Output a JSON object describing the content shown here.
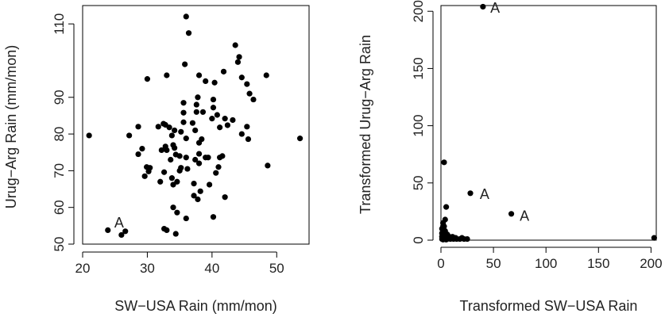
{
  "chart_data": [
    {
      "type": "scatter",
      "title": "",
      "xlabel": "SW−USA Rain (mm/mon)",
      "ylabel": "Urug−Arg Rain (mm/mon)",
      "xlim": [
        20,
        55
      ],
      "ylim": [
        50,
        115
      ],
      "xticks": [
        20,
        30,
        40,
        50
      ],
      "yticks": [
        50,
        60,
        70,
        80,
        90,
        110
      ],
      "grid": false,
      "point_color": "#000000",
      "annotations": [
        {
          "text": "A",
          "x": 24.9,
          "y": 55.8
        }
      ],
      "points": [
        [
          21,
          79.6
        ],
        [
          23.9,
          53.8
        ],
        [
          26,
          52.5
        ],
        [
          26.6,
          53.5
        ],
        [
          27.2,
          79.6
        ],
        [
          28.6,
          82
        ],
        [
          28.6,
          74.5
        ],
        [
          29.2,
          76
        ],
        [
          29.6,
          68.5
        ],
        [
          29.9,
          71
        ],
        [
          30,
          95
        ],
        [
          30.2,
          69.8
        ],
        [
          30.4,
          70.8
        ],
        [
          31.7,
          82
        ],
        [
          32,
          67
        ],
        [
          32.2,
          75.6
        ],
        [
          32.5,
          82.8
        ],
        [
          32.6,
          54.2
        ],
        [
          32.6,
          69.6
        ],
        [
          32.8,
          76.6
        ],
        [
          32.8,
          82.5
        ],
        [
          33,
          53.8
        ],
        [
          33,
          96
        ],
        [
          33,
          75.6
        ],
        [
          33.4,
          81.8
        ],
        [
          33.6,
          73
        ],
        [
          33.8,
          68
        ],
        [
          33.8,
          79.6
        ],
        [
          34,
          60
        ],
        [
          34,
          77
        ],
        [
          34,
          66.2
        ],
        [
          34.2,
          76.2
        ],
        [
          34.2,
          81
        ],
        [
          34.4,
          52.8
        ],
        [
          34.4,
          74.4
        ],
        [
          34.6,
          58.6
        ],
        [
          34.6,
          67
        ],
        [
          35,
          74
        ],
        [
          35,
          70
        ],
        [
          35.2,
          80.6
        ],
        [
          35.2,
          70.8
        ],
        [
          35.6,
          83.2
        ],
        [
          35.6,
          85.8
        ],
        [
          35.6,
          88.5
        ],
        [
          35.8,
          99
        ],
        [
          36,
          112
        ],
        [
          36,
          57
        ],
        [
          36,
          73.6
        ],
        [
          36.2,
          70.5
        ],
        [
          36,
          78.8
        ],
        [
          36.4,
          107.5
        ],
        [
          37,
          83
        ],
        [
          37.2,
          63.2
        ],
        [
          37.2,
          66.5
        ],
        [
          37.4,
          73
        ],
        [
          37.4,
          81
        ],
        [
          37.6,
          86
        ],
        [
          37.6,
          88
        ],
        [
          37.8,
          90
        ],
        [
          37.8,
          62.2
        ],
        [
          38,
          96
        ],
        [
          38,
          74.6
        ],
        [
          38,
          72
        ],
        [
          38,
          77.6
        ],
        [
          38.2,
          64.4
        ],
        [
          38.4,
          78.6
        ],
        [
          38.6,
          86
        ],
        [
          39,
          94.4
        ],
        [
          39,
          73.6
        ],
        [
          39.4,
          73.6
        ],
        [
          39.6,
          66.2
        ],
        [
          40,
          84.2
        ],
        [
          40.2,
          57.4
        ],
        [
          40.2,
          89.4
        ],
        [
          40.2,
          87.2
        ],
        [
          40.4,
          94
        ],
        [
          40.6,
          69.4
        ],
        [
          40.8,
          85.2
        ],
        [
          41,
          71
        ],
        [
          41.2,
          81.8
        ],
        [
          41.2,
          73.6
        ],
        [
          41.6,
          74
        ],
        [
          41.8,
          97
        ],
        [
          42,
          62.8
        ],
        [
          42,
          84.2
        ],
        [
          42.4,
          82.4
        ],
        [
          43.2,
          83.8
        ],
        [
          43.6,
          104.2
        ],
        [
          44,
          99.6
        ],
        [
          44.2,
          101
        ],
        [
          44.6,
          95.4
        ],
        [
          44.6,
          80
        ],
        [
          45.4,
          82
        ],
        [
          45.4,
          93.6
        ],
        [
          45.6,
          78.6
        ],
        [
          45.8,
          91
        ],
        [
          46.4,
          89.4
        ],
        [
          48.4,
          96
        ],
        [
          48.6,
          71.4
        ],
        [
          53.6,
          78.8
        ]
      ]
    },
    {
      "type": "scatter",
      "title": "",
      "xlabel": "Transformed SW−USA Rain",
      "ylabel": "Transformed Urug−Arg Rain",
      "xlim": [
        0,
        205
      ],
      "ylim": [
        0,
        205
      ],
      "xticks": [
        0,
        50,
        100,
        150,
        200
      ],
      "yticks": [
        0,
        50,
        100,
        150,
        200
      ],
      "grid": false,
      "point_color": "#000000",
      "annotations": [
        {
          "text": "A",
          "x": 47,
          "y": 203
        },
        {
          "text": "A",
          "x": 37,
          "y": 40
        },
        {
          "text": "A",
          "x": 75,
          "y": 21
        }
      ],
      "points": [
        [
          40,
          204
        ],
        [
          3,
          68
        ],
        [
          28,
          41
        ],
        [
          67,
          23
        ],
        [
          203,
          2
        ],
        [
          5,
          29
        ],
        [
          2,
          15
        ],
        [
          3,
          12
        ],
        [
          4,
          18
        ],
        [
          2,
          9
        ],
        [
          1,
          6
        ],
        [
          2,
          4
        ],
        [
          3,
          3
        ],
        [
          5,
          2
        ],
        [
          6,
          5
        ],
        [
          8,
          3
        ],
        [
          10,
          2
        ],
        [
          12,
          1
        ],
        [
          15,
          1
        ],
        [
          20,
          2
        ],
        [
          1,
          1
        ],
        [
          2,
          2
        ],
        [
          4,
          1
        ],
        [
          6,
          1
        ],
        [
          7,
          3
        ],
        [
          3,
          7
        ],
        [
          1,
          3
        ],
        [
          2,
          0.5
        ],
        [
          5,
          0.5
        ],
        [
          9,
          1
        ],
        [
          11,
          3
        ],
        [
          14,
          2
        ],
        [
          18,
          1
        ],
        [
          22,
          1
        ],
        [
          25,
          1
        ],
        [
          1,
          10
        ],
        [
          3,
          5
        ],
        [
          4,
          8
        ],
        [
          2,
          12
        ],
        [
          6,
          2
        ]
      ]
    }
  ]
}
